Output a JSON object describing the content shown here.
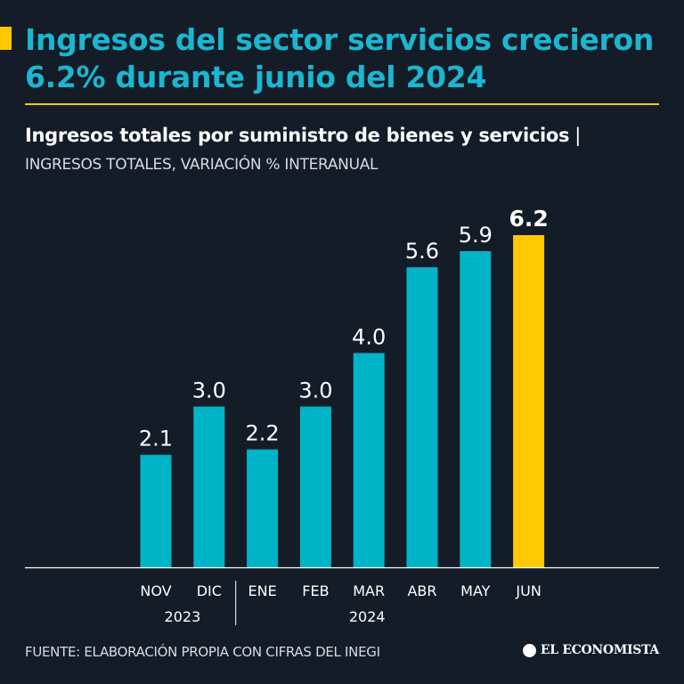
{
  "header": {
    "title": "Ingresos del sector servicios crecieron 6.2% durante junio del 2024",
    "subtitle": "Ingresos totales por suministro de bienes y servicios",
    "subtitle_separator": "|",
    "unit_label": "INGRESOS TOTALES, VARIACIÓN % INTERANUAL"
  },
  "chart_data": {
    "type": "bar",
    "title": "Ingresos totales por suministro de bienes y servicios",
    "ylabel": "INGRESOS TOTALES, VARIACIÓN % INTERANUAL",
    "xlabel": "",
    "categories": [
      "NOV",
      "DIC",
      "ENE",
      "FEB",
      "MAR",
      "ABR",
      "MAY",
      "JUN"
    ],
    "labels": [
      "2.1",
      "3.0",
      "2.2",
      "3.0",
      "4.0",
      "5.6",
      "5.9",
      "6.2"
    ],
    "values": [
      2.1,
      3.0,
      2.2,
      3.0,
      4.0,
      5.6,
      5.9,
      6.2
    ],
    "highlight_index": 7,
    "year_groups": [
      {
        "label": "2023",
        "from": 0,
        "to": 1
      },
      {
        "label": "2024",
        "from": 2,
        "to": 7
      }
    ],
    "ylim": [
      0,
      6.2
    ],
    "grid": false,
    "colors": {
      "bar": "#00b4c8",
      "highlight": "#ffc800"
    }
  },
  "footer": {
    "source": "FUENTE: ELABORACIÓN PROPIA CON CIFRAS DEL INEGI",
    "brand": "EL ECONOMISTA"
  },
  "colors": {
    "background": "#141c28",
    "title": "#1bb6cf",
    "accent": "#ffc800",
    "text": "#ffffff",
    "muted": "#d6dbe2"
  }
}
